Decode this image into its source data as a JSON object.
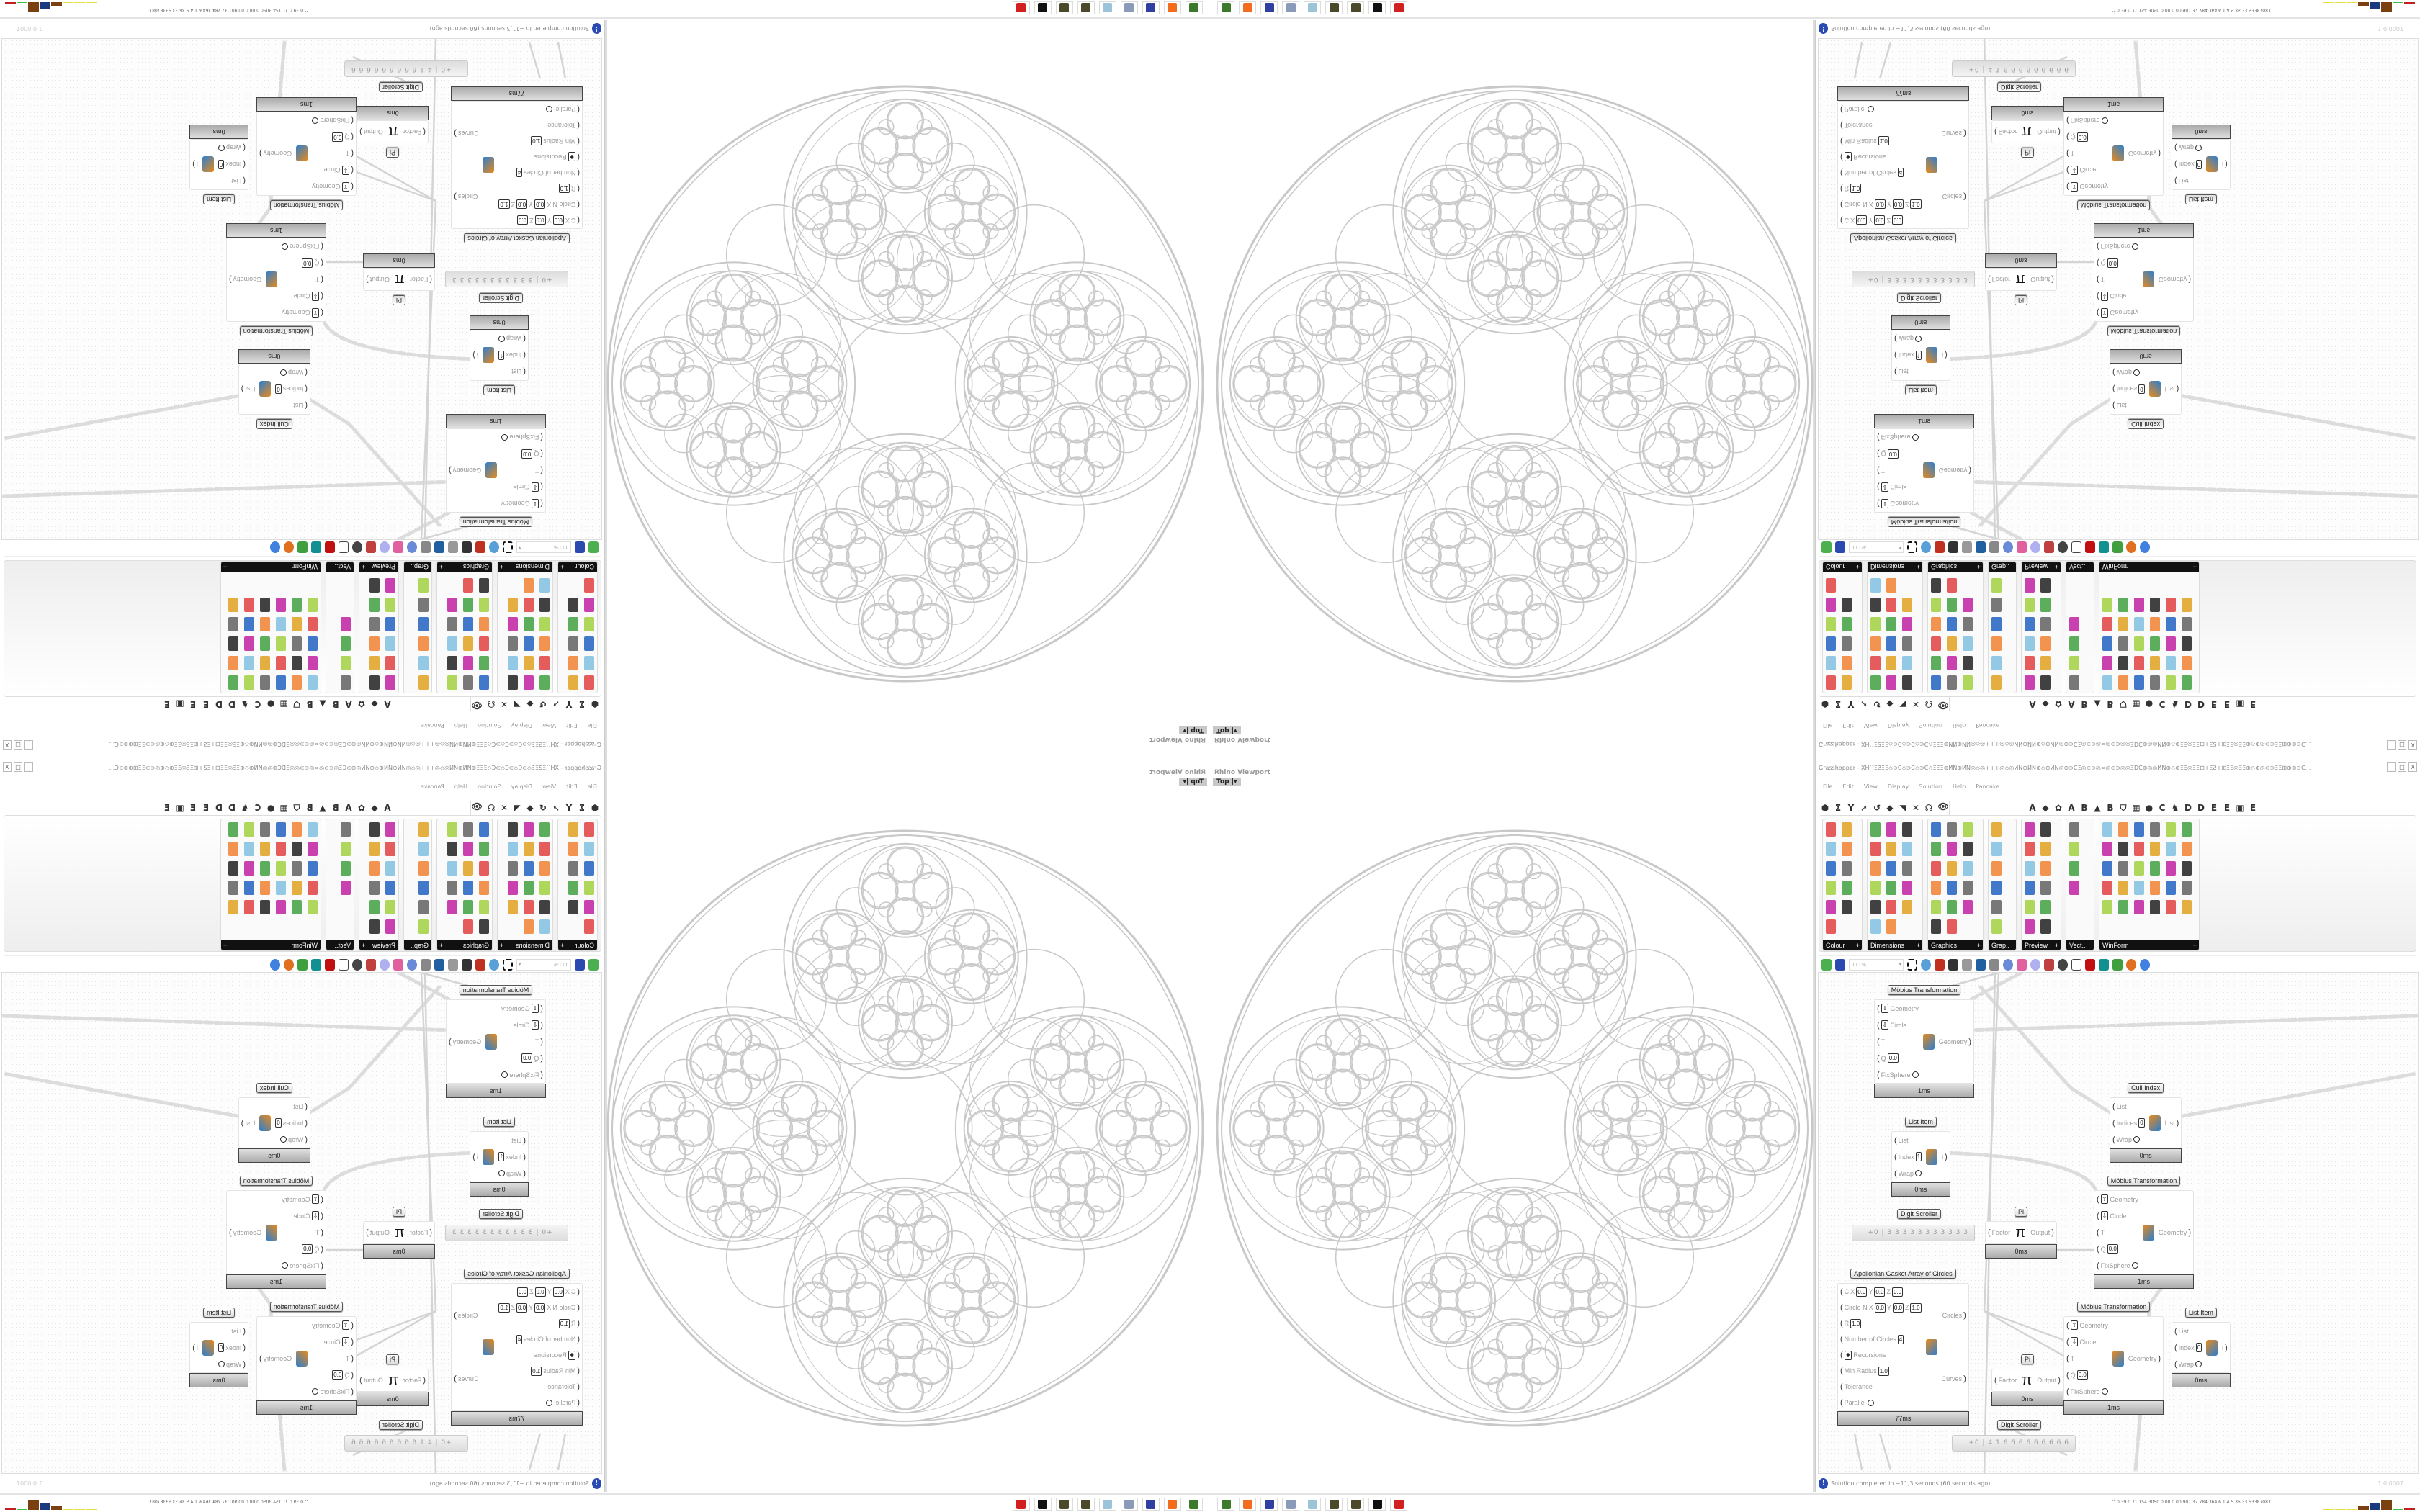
{
  "viewport": {
    "title": "Rhino Viewport",
    "view_button": "Top",
    "view_dropdown_icon": "chevron-down-icon",
    "stroke_color": "#c8c8c8"
  },
  "grasshopper": {
    "title": "Grasshopper - XH[]ΞƧΞΞ◇⊃C◇⊃C◇⊃C◇ΞΞΞ⊕ИN⊕ИN◎◇◎+++◎◇◎ИN⊕ИN⊕◇⊕ИN◎⊕⊃CΞ◎⊂⊃◎∞◎⊂⊃◎◎ΞⅮC⊕◎◎ИN⊕◇⊕ΞΞ◎ΞΞ⊞+ΞƧ+⊞ΞΞ◎ΞΞ⊕◇⊕◎⊂⊃ΞΞ⊞⊕⊕⊃C...",
    "window_buttons": [
      "_",
      "□",
      "X"
    ],
    "menu": [
      "File",
      "Edit",
      "View",
      "Display",
      "Solution",
      "Help",
      "Pancake"
    ],
    "tab_icons": [
      "⬢",
      "Σ",
      "Y",
      "➚",
      "↺",
      "◆",
      "◥",
      "✕",
      "☊",
      "👁"
    ],
    "tab_letters": [
      "A",
      "◆",
      "✿",
      "A",
      "B",
      "▲",
      "B",
      "⛉",
      "▦",
      "●",
      "C",
      "♞",
      "D",
      "D",
      "E",
      "E",
      "▣",
      "E"
    ],
    "panels": [
      {
        "label": "Colour",
        "cols": 2,
        "count": 11
      },
      {
        "label": "Dimensions",
        "cols": 3,
        "count": 17
      },
      {
        "label": "Graphics",
        "cols": 3,
        "count": 17
      },
      {
        "label": "Grap..",
        "cols": 1,
        "count": 6
      },
      {
        "label": "Preview",
        "cols": 2,
        "count": 12
      },
      {
        "label": "Vect..",
        "cols": 1,
        "count": 4
      },
      {
        "label": "WinForm",
        "cols": 6,
        "count": 30
      }
    ],
    "panel_expand": "+",
    "toolbar": {
      "zoom": "111%"
    },
    "status": {
      "message": "Solution completed in ~11,3 seconds (60 seconds ago)",
      "version": "1.0.0007",
      "icon": "info-icon"
    },
    "nodes": [
      {
        "title": "Möbius Transformation",
        "inputs": [
          {
            "label": "Geometry",
            "glyph": "⇧"
          },
          {
            "label": "Circle",
            "glyph": "⇩"
          },
          {
            "label": "T"
          },
          {
            "label": "Q",
            "values": [
              "0.0"
            ]
          },
          {
            "label": "FixSphere",
            "toggle": true
          }
        ],
        "outputs": [
          "Geometry"
        ],
        "footer": "1ms"
      },
      {
        "title": "List Item",
        "inputs": [
          {
            "label": "List"
          },
          {
            "label": "Index",
            "values": [
              "1"
            ]
          },
          {
            "label": "Wrap",
            "toggle": true
          }
        ],
        "outputs": [
          "i"
        ],
        "footer": "0ms"
      },
      {
        "title": "Cull Index",
        "inputs": [
          {
            "label": "List"
          },
          {
            "label": "Indices",
            "values": [
              "0"
            ]
          },
          {
            "label": "Wrap",
            "toggle": true
          }
        ],
        "outputs": [
          "List"
        ],
        "footer": "0ms"
      },
      {
        "title": "Möbius Transformation",
        "inputs": [
          {
            "label": "Geometry",
            "glyph": "⇧"
          },
          {
            "label": "Circle",
            "glyph": "⇩"
          },
          {
            "label": "T"
          },
          {
            "label": "Q",
            "values": [
              "0.0"
            ]
          },
          {
            "label": "FixSphere",
            "toggle": true
          }
        ],
        "outputs": [
          "Geometry"
        ],
        "footer": "1ms"
      },
      {
        "title": "Pi",
        "inputs": [
          {
            "label": "Factor"
          }
        ],
        "outputs": [
          "Output"
        ],
        "footer": "0ms",
        "pi": "π"
      },
      {
        "title": "Apollonian Gasket Array of Circles",
        "inputs": [
          {
            "label": "C",
            "values": [
              "X",
              "0.0",
              "Y",
              "0.0",
              "Z",
              "0.0"
            ]
          },
          {
            "label": "Circle  N",
            "values": [
              "X",
              "0.0",
              "Y",
              "0.0",
              "Z",
              "1.0"
            ]
          },
          {
            "label": "R",
            "values": [
              "1.0"
            ]
          },
          {
            "label": "Number of Circles",
            "values": [
              "4"
            ]
          },
          {
            "label": "Recursions",
            "glyph": "✱"
          },
          {
            "label": "Min Radius",
            "values": [
              "1.0"
            ]
          },
          {
            "label": "Tolerance"
          },
          {
            "label": "Parallel",
            "toggle": true
          }
        ],
        "outputs": [
          "Circles",
          "Curves"
        ],
        "footer": "77ms"
      },
      {
        "title": "Möbius Transformation",
        "inputs": [
          {
            "label": "Geometry",
            "glyph": "⇧"
          },
          {
            "label": "Circle",
            "glyph": "⇩"
          },
          {
            "label": "T"
          },
          {
            "label": "Q",
            "values": [
              "0.0"
            ]
          },
          {
            "label": "FixSphere",
            "toggle": true
          }
        ],
        "outputs": [
          "Geometry"
        ],
        "footer": "1ms"
      },
      {
        "title": "List Item",
        "inputs": [
          {
            "label": "List"
          },
          {
            "label": "Index",
            "values": [
              "0"
            ]
          },
          {
            "label": "Wrap",
            "toggle": true
          }
        ],
        "outputs": [
          "i"
        ],
        "footer": "0ms"
      },
      {
        "title": "Pi",
        "inputs": [
          {
            "label": "Factor"
          }
        ],
        "outputs": [
          "Output"
        ],
        "footer": "0ms",
        "pi": "π"
      }
    ],
    "sliders": [
      {
        "title": "Digit Scroller",
        "value": "+0 | 3 3 3 3 3 3 3 3 3 3 3"
      },
      {
        "title": "Digit Scroller",
        "value": "+0 | 4 1 6 6 6 6 6 6 6 6 6"
      }
    ]
  },
  "taskbar": {
    "apps": [
      {
        "icon": "terminal-icon",
        "color": "#3a7a2a"
      },
      {
        "icon": "firefox-icon",
        "color": "#f36b1c"
      },
      {
        "icon": "floppy-64-icon",
        "color": "#3040a0"
      },
      {
        "icon": "scroll-icon",
        "color": "#8a9ab8"
      },
      {
        "icon": "notepad-icon",
        "color": "#9cc4d8"
      },
      {
        "icon": "rhino-ball-icon",
        "color": "#4a4a2a"
      },
      {
        "icon": "rhino-ball-icon",
        "color": "#4a4a2a"
      },
      {
        "icon": "cow-icon",
        "color": "#111111"
      },
      {
        "icon": "bug-icon",
        "color": "#d02020"
      }
    ],
    "perf_toggle": "^",
    "perf": "0.39 0.71 154 3050 0.00 0.00 901 37 784 364 6.1 4.5 36 33 53387083",
    "perf_bar_colors": [
      "#e8e040",
      "#e8e040",
      "#e8e040",
      "#7a4010",
      "#1a3a80",
      "#7a4010",
      "#40c040",
      "#c02020"
    ]
  }
}
